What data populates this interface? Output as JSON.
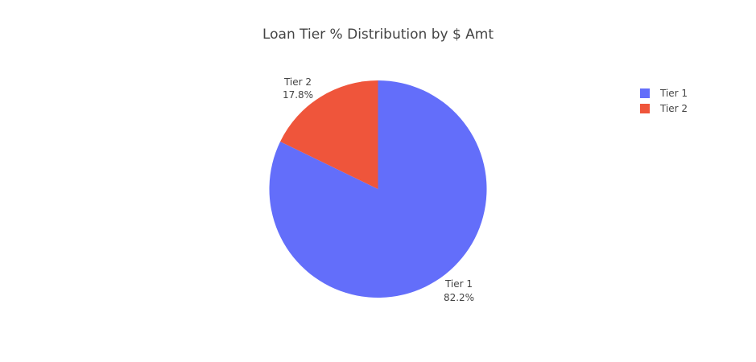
{
  "chart_data": {
    "type": "pie",
    "title": "Loan Tier % Distribution by $ Amt",
    "slices": [
      {
        "label": "Tier 1",
        "value": 82.2,
        "percent_text": "82.2%",
        "color": "#636efa"
      },
      {
        "label": "Tier 2",
        "value": 17.8,
        "percent_text": "17.8%",
        "color": "#ef553b"
      }
    ],
    "legend": {
      "position": "top-right",
      "items": [
        "Tier 1",
        "Tier 2"
      ]
    },
    "direction": "clockwise",
    "start": "top"
  }
}
